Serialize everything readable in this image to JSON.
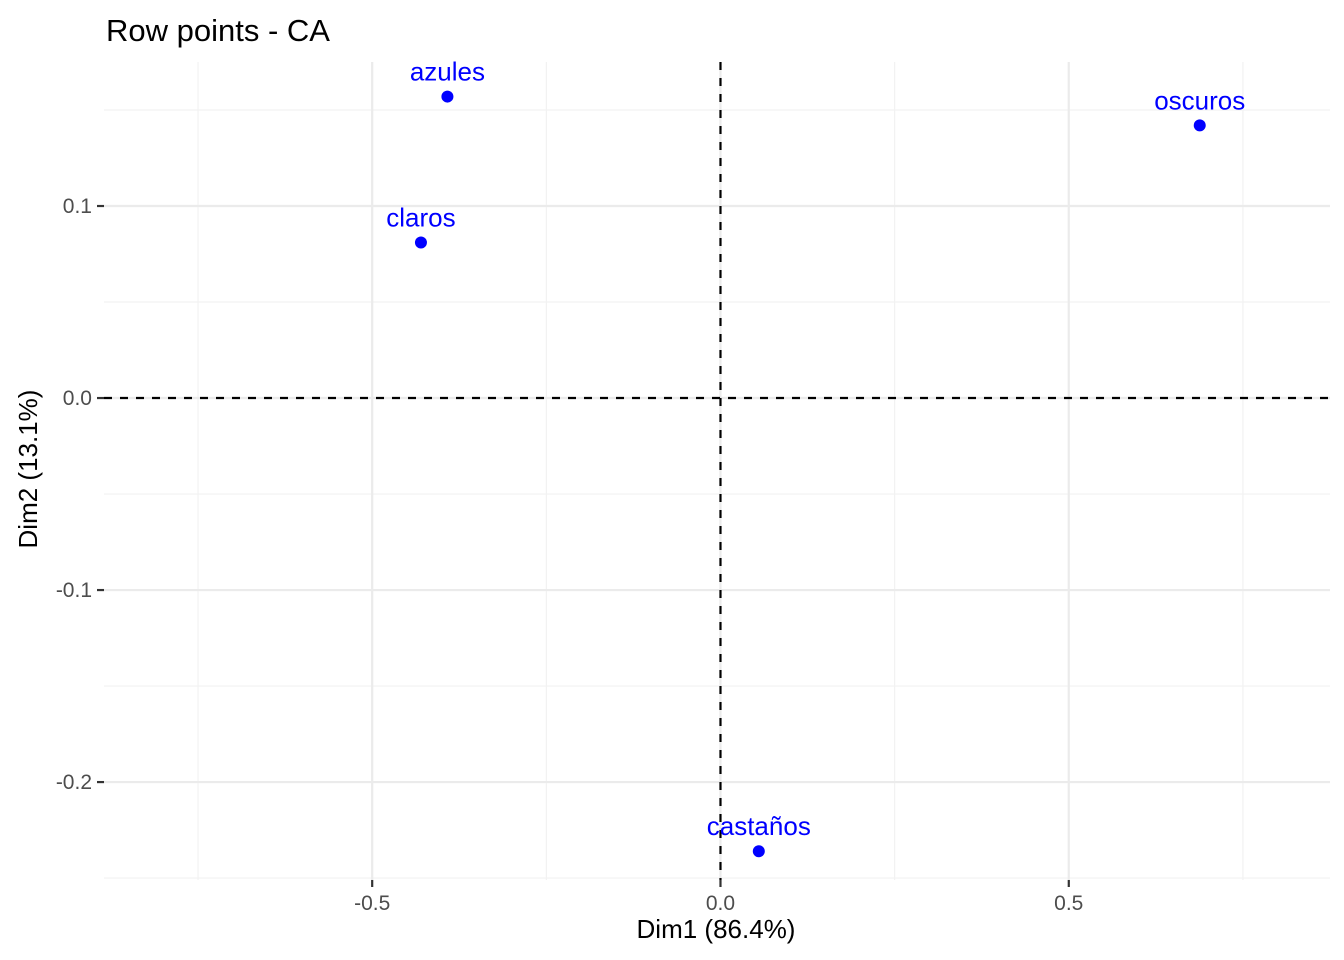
{
  "chart_data": {
    "type": "scatter",
    "title": "Row points - CA",
    "xlabel": "Dim1 (86.4%)",
    "ylabel": "Dim2 (13.1%)",
    "xlim": [
      -0.885,
      0.875
    ],
    "ylim": [
      -0.251,
      0.175
    ],
    "x_ticks": [
      -0.5,
      0.0,
      0.5
    ],
    "x_tick_labels": [
      "-0.5",
      "0.0",
      "0.5"
    ],
    "y_ticks": [
      -0.2,
      -0.1,
      0.0,
      0.1
    ],
    "y_tick_labels": [
      "-0.2",
      "-0.1",
      "0.0",
      "0.1"
    ],
    "x_minor_ticks": [
      -0.75,
      -0.25,
      0.25,
      0.75
    ],
    "y_minor_ticks": [
      -0.25,
      -0.15,
      -0.05,
      0.05,
      0.15
    ],
    "grid": true,
    "reference_lines": {
      "x": 0,
      "y": 0,
      "style": "dashed"
    },
    "point_color": "#0000ff",
    "points": [
      {
        "label": "azules",
        "x": -0.392,
        "y": 0.157
      },
      {
        "label": "oscuros",
        "x": 0.688,
        "y": 0.142
      },
      {
        "label": "claros",
        "x": -0.43,
        "y": 0.081
      },
      {
        "label": "castaños",
        "x": 0.055,
        "y": -0.236
      }
    ]
  }
}
